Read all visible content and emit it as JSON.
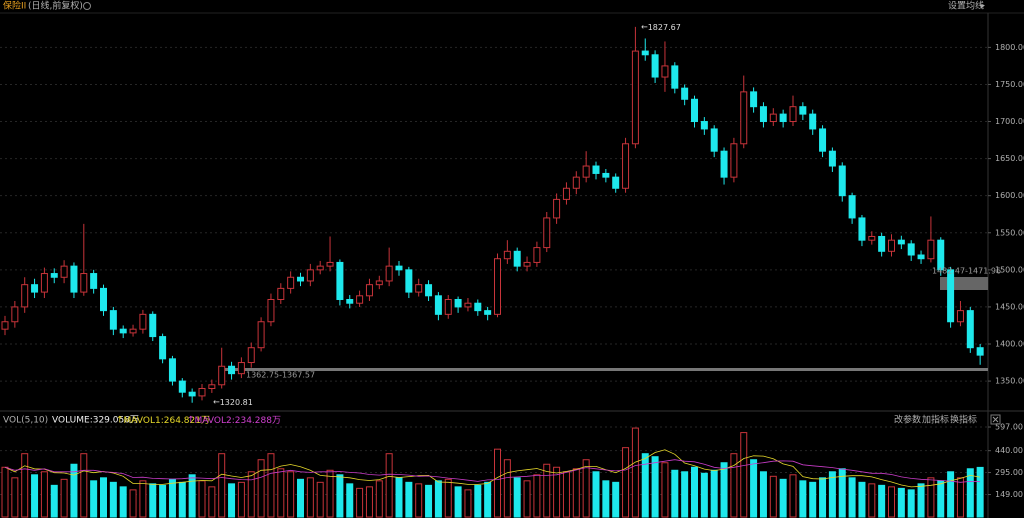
{
  "header": {
    "symbol": "保险II",
    "period": "(日线,前复权)",
    "ma_setting": "设置均线"
  },
  "volume_panel": {
    "indicator": "VOL(5,10)",
    "volume": "VOLUME:329.058万",
    "mavol1": "MAVOL1:264.821万",
    "mavol2": "MAVOL2:234.288万",
    "buttons": [
      "改参数",
      "加指标",
      "换指标"
    ]
  },
  "chart_data": {
    "type": "candlestick",
    "open": [
      1420,
      1430,
      1450,
      1480,
      1470,
      1495,
      1490,
      1505,
      1470,
      1495,
      1475,
      1445,
      1420,
      1415,
      1420,
      1440,
      1410,
      1380,
      1350,
      1335,
      1330,
      1340,
      1345,
      1370,
      1360,
      1375,
      1395,
      1430,
      1460,
      1475,
      1490,
      1485,
      1500,
      1505,
      1510,
      1460,
      1455,
      1465,
      1480,
      1485,
      1505,
      1500,
      1470,
      1480,
      1465,
      1440,
      1460,
      1450,
      1455,
      1445,
      1440,
      1515,
      1525,
      1505,
      1510,
      1530,
      1570,
      1595,
      1610,
      1625,
      1640,
      1630,
      1625,
      1610,
      1670,
      1795,
      1790,
      1760,
      1775,
      1745,
      1730,
      1700,
      1690,
      1660,
      1625,
      1670,
      1740,
      1720,
      1700,
      1710,
      1700,
      1720,
      1710,
      1690,
      1660,
      1640,
      1600,
      1570,
      1540,
      1545,
      1525,
      1540,
      1535,
      1520,
      1515,
      1540,
      1500,
      1430,
      1445,
      1395
    ],
    "high": [
      1438,
      1458,
      1490,
      1488,
      1503,
      1502,
      1513,
      1510,
      1562,
      1500,
      1480,
      1450,
      1425,
      1426,
      1446,
      1444,
      1414,
      1384,
      1354,
      1340,
      1346,
      1352,
      1395,
      1376,
      1382,
      1402,
      1436,
      1468,
      1482,
      1498,
      1496,
      1508,
      1512,
      1545,
      1514,
      1466,
      1472,
      1488,
      1492,
      1530,
      1512,
      1504,
      1488,
      1486,
      1470,
      1466,
      1464,
      1462,
      1460,
      1450,
      1522,
      1540,
      1530,
      1518,
      1538,
      1578,
      1603,
      1618,
      1633,
      1660,
      1646,
      1636,
      1630,
      1678,
      1827.67,
      1812,
      1796,
      1808,
      1780,
      1750,
      1735,
      1706,
      1695,
      1665,
      1678,
      1762,
      1746,
      1726,
      1718,
      1716,
      1735,
      1726,
      1716,
      1695,
      1665,
      1645,
      1604,
      1574,
      1552,
      1550,
      1548,
      1546,
      1540,
      1526,
      1572,
      1544,
      1504,
      1458,
      1450,
      1400
    ],
    "low": [
      1412,
      1422,
      1442,
      1462,
      1462,
      1482,
      1482,
      1462,
      1465,
      1468,
      1438,
      1412,
      1408,
      1410,
      1414,
      1404,
      1374,
      1344,
      1328,
      1320.81,
      1324,
      1334,
      1340,
      1352,
      1354,
      1368,
      1390,
      1424,
      1454,
      1468,
      1478,
      1478,
      1494,
      1498,
      1452,
      1448,
      1450,
      1458,
      1474,
      1478,
      1492,
      1462,
      1464,
      1458,
      1432,
      1434,
      1442,
      1444,
      1438,
      1432,
      1436,
      1508,
      1498,
      1498,
      1504,
      1524,
      1562,
      1588,
      1602,
      1618,
      1622,
      1618,
      1604,
      1604,
      1664,
      1782,
      1752,
      1740,
      1738,
      1722,
      1692,
      1682,
      1652,
      1615,
      1618,
      1664,
      1712,
      1692,
      1694,
      1692,
      1694,
      1702,
      1682,
      1652,
      1632,
      1592,
      1562,
      1532,
      1534,
      1518,
      1518,
      1528,
      1512,
      1508,
      1510,
      1492,
      1422,
      1424,
      1388,
      1372
    ],
    "close": [
      1430,
      1450,
      1480,
      1470,
      1495,
      1490,
      1505,
      1470,
      1495,
      1475,
      1445,
      1420,
      1415,
      1420,
      1440,
      1410,
      1380,
      1350,
      1335,
      1330,
      1340,
      1345,
      1370,
      1360,
      1375,
      1395,
      1430,
      1460,
      1475,
      1490,
      1485,
      1500,
      1505,
      1510,
      1460,
      1455,
      1465,
      1480,
      1485,
      1505,
      1500,
      1470,
      1480,
      1465,
      1440,
      1460,
      1450,
      1455,
      1445,
      1440,
      1515,
      1525,
      1505,
      1510,
      1530,
      1570,
      1595,
      1610,
      1625,
      1640,
      1630,
      1625,
      1610,
      1670,
      1795,
      1790,
      1760,
      1775,
      1745,
      1730,
      1700,
      1690,
      1660,
      1625,
      1670,
      1740,
      1720,
      1700,
      1710,
      1700,
      1720,
      1710,
      1690,
      1660,
      1640,
      1600,
      1570,
      1540,
      1545,
      1525,
      1540,
      1535,
      1520,
      1515,
      1540,
      1500,
      1430,
      1445,
      1395,
      1385
    ],
    "volume": [
      330,
      260,
      420,
      280,
      300,
      210,
      250,
      350,
      420,
      240,
      260,
      230,
      200,
      180,
      240,
      220,
      210,
      250,
      230,
      280,
      240,
      200,
      420,
      220,
      230,
      300,
      380,
      420,
      320,
      300,
      250,
      260,
      230,
      310,
      280,
      220,
      190,
      200,
      240,
      420,
      260,
      230,
      220,
      210,
      240,
      250,
      200,
      180,
      210,
      230,
      450,
      380,
      260,
      240,
      280,
      350,
      330,
      300,
      320,
      380,
      300,
      240,
      230,
      460,
      590,
      420,
      400,
      360,
      310,
      300,
      330,
      290,
      310,
      360,
      420,
      560,
      380,
      300,
      270,
      250,
      280,
      240,
      230,
      260,
      300,
      320,
      260,
      230,
      220,
      210,
      200,
      190,
      180,
      220,
      260,
      240,
      300,
      260,
      320,
      329.058
    ],
    "ma5": [
      330,
      300,
      340,
      320,
      318,
      294,
      292,
      278,
      306,
      294,
      302,
      292,
      270,
      222,
      222,
      216,
      216,
      224,
      230,
      238,
      242,
      240,
      284,
      272,
      262,
      274,
      310,
      314,
      338,
      348,
      334,
      310,
      276,
      270,
      266,
      260,
      248,
      242,
      248,
      270,
      262,
      268,
      274,
      276,
      232,
      230,
      224,
      216,
      216,
      222,
      262,
      294,
      306,
      314,
      322,
      302,
      292,
      302,
      316,
      336,
      336,
      314,
      294,
      322,
      364,
      388,
      428,
      446,
      416,
      358,
      340,
      318,
      308,
      318,
      342,
      388,
      406,
      404,
      386,
      352,
      336,
      268,
      254,
      252,
      262,
      270,
      274,
      274,
      266,
      248,
      232,
      212,
      200,
      204,
      210,
      220,
      240,
      256,
      276,
      264.821
    ],
    "ma10": [
      330,
      310,
      320,
      310,
      320,
      300,
      300,
      300,
      310,
      310,
      300,
      296,
      288,
      262,
      264,
      256,
      254,
      252,
      254,
      260,
      258,
      254,
      262,
      254,
      248,
      246,
      264,
      290,
      300,
      310,
      300,
      296,
      300,
      300,
      302,
      296,
      292,
      282,
      278,
      284,
      282,
      278,
      270,
      272,
      266,
      258,
      252,
      244,
      236,
      246,
      248,
      262,
      266,
      270,
      276,
      276,
      280,
      296,
      312,
      328,
      320,
      312,
      306,
      312,
      342,
      350,
      360,
      370,
      380,
      370,
      366,
      350,
      330,
      322,
      330,
      342,
      352,
      360,
      370,
      372,
      370,
      346,
      340,
      334,
      328,
      318,
      310,
      300,
      290,
      290,
      282,
      266,
      256,
      250,
      246,
      242,
      238,
      230,
      236,
      234.288
    ],
    "up_color": "#c8343a",
    "down_color": "#1ee8ec",
    "ma5_color": "#e6d82a",
    "ma10_color": "#c83cc8",
    "ylim": [
      1311,
      1845
    ],
    "yticks": [
      {
        "value": 1350,
        "label": "1350.00"
      },
      {
        "value": 1400,
        "label": "1400.00"
      },
      {
        "value": 1450,
        "label": "1450.00"
      },
      {
        "value": 1500,
        "label": "1500.00"
      },
      {
        "value": 1550,
        "label": "1550.00"
      },
      {
        "value": 1600,
        "label": "1600.00"
      },
      {
        "value": 1650,
        "label": "1650.00"
      },
      {
        "value": 1700,
        "label": "1700.00"
      },
      {
        "value": 1750,
        "label": "1750.00"
      },
      {
        "value": 1800,
        "label": "1800.00"
      }
    ],
    "vlim": [
      0,
      690
    ],
    "vticks": [
      {
        "value": 149,
        "label": "149.00"
      },
      {
        "value": 295,
        "label": "295.00"
      },
      {
        "value": 440,
        "label": "440.00"
      },
      {
        "value": 597,
        "label": "597.00"
      }
    ],
    "grid": true,
    "annotations": {
      "high": "1827.67",
      "low": "1320.81",
      "band_low": "1362.75-1367.57",
      "band_right": "1482.47-1471.96"
    }
  }
}
